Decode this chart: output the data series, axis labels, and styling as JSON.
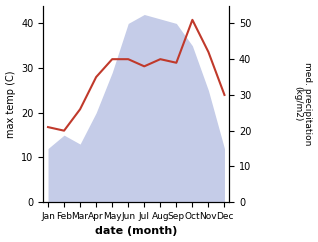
{
  "months": [
    "Jan",
    "Feb",
    "Mar",
    "Apr",
    "May",
    "Jun",
    "Jul",
    "Aug",
    "Sep",
    "Oct",
    "Nov",
    "Dec"
  ],
  "temp": [
    12,
    15,
    13,
    20,
    29,
    40,
    42,
    41,
    40,
    35,
    25,
    12
  ],
  "precip": [
    21,
    20,
    26,
    35,
    40,
    40,
    38,
    40,
    39,
    51,
    42,
    30
  ],
  "temp_color": "#c0392b",
  "precip_fill_color": "#c5cce8",
  "temp_ylim": [
    0,
    44
  ],
  "precip_ylim": [
    0,
    55
  ],
  "temp_yticks": [
    0,
    10,
    20,
    30,
    40
  ],
  "precip_yticks": [
    0,
    10,
    20,
    30,
    40,
    50
  ],
  "ylabel_left": "max temp (C)",
  "ylabel_right": "med. precipitation\n(kg/m2)",
  "xlabel": "date (month)"
}
